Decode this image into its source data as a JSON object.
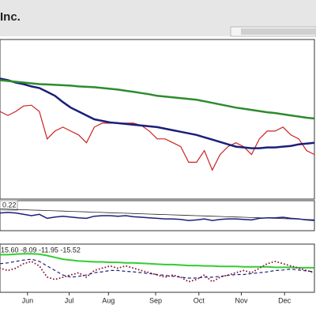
{
  "chart_data": [
    {
      "type": "line",
      "title": "Inc.",
      "xlim": [
        0,
        40
      ],
      "ylim": [
        0,
        100
      ],
      "x": [
        0,
        1,
        2,
        3,
        4,
        5,
        6,
        7,
        8,
        9,
        10,
        11,
        12,
        13,
        14,
        15,
        16,
        17,
        18,
        19,
        20,
        21,
        22,
        23,
        24,
        25,
        26,
        27,
        28,
        29,
        30,
        31,
        32,
        33,
        34,
        35,
        36,
        37,
        38,
        39,
        40
      ],
      "series": [
        {
          "color": "#cc2222",
          "width": 1.2,
          "values": [
            55,
            52.5,
            55,
            58.5,
            59,
            55,
            37.5,
            42.5,
            45,
            42.5,
            40,
            35,
            45,
            47.5,
            47.5,
            47.5,
            47.5,
            47.5,
            46,
            42.5,
            37.5,
            37.5,
            35,
            32.5,
            22.5,
            22.5,
            30,
            17.5,
            27.5,
            32.5,
            35,
            32.5,
            27.5,
            37.5,
            42.5,
            42.5,
            45,
            40,
            37.5,
            30,
            27.5
          ]
        },
        {
          "color": "#1a1f7a",
          "width": 2.5,
          "values": [
            76,
            75,
            73.5,
            72.5,
            71,
            70,
            67.5,
            65,
            61,
            57.5,
            55,
            52.5,
            50,
            49,
            48,
            47.5,
            47,
            46.5,
            46,
            45.5,
            45,
            44,
            43,
            42,
            41,
            40,
            38.5,
            37,
            35.5,
            34,
            32.5,
            32,
            31.5,
            31.5,
            32,
            32,
            32.5,
            33,
            34,
            34.5,
            35
          ]
        },
        {
          "color": "#2e8b2e",
          "width": 2.5,
          "values": [
            75,
            74.5,
            74,
            73.5,
            73,
            72.5,
            72.25,
            72,
            71.75,
            71.5,
            71,
            70.75,
            70.5,
            70,
            69.5,
            69,
            68.25,
            67.5,
            66.75,
            66,
            65,
            64.5,
            64,
            63.5,
            63,
            62.5,
            61.5,
            60.5,
            59.5,
            58.5,
            57.5,
            56.75,
            56,
            55.25,
            54.5,
            54,
            53.25,
            52.5,
            51.75,
            51,
            50.5
          ]
        }
      ]
    },
    {
      "type": "line",
      "label": "0.22",
      "xlim": [
        0,
        40
      ],
      "ylim": [
        0,
        10
      ],
      "x": [
        0,
        1,
        2,
        3,
        4,
        5,
        6,
        7,
        8,
        9,
        10,
        11,
        12,
        13,
        14,
        15,
        16,
        17,
        18,
        19,
        20,
        21,
        22,
        23,
        24,
        25,
        26,
        27,
        28,
        29,
        30,
        31,
        32,
        33,
        34,
        35,
        36,
        37,
        38,
        39,
        40
      ],
      "series": [
        {
          "color": "#222222",
          "width": 0.8,
          "values": [
            7.5,
            7.4,
            7.3,
            7.2,
            7.1,
            7,
            6.9,
            6.8,
            6.7,
            6.6,
            6.5,
            6.4,
            6.3,
            6.2,
            6.1,
            6,
            5.9,
            5.8,
            5.7,
            5.6,
            5.5,
            5.4,
            5.3,
            5.2,
            5.1,
            5,
            4.9,
            4.8,
            4.7,
            4.6,
            4.5,
            4.4,
            4.3,
            4.2,
            4.1,
            4,
            3.9,
            3.8,
            3.7,
            3.6,
            3.5
          ]
        },
        {
          "color": "#1a1f7a",
          "width": 1.5,
          "values": [
            6,
            6.2,
            6,
            5.5,
            5,
            5.5,
            4,
            4.5,
            4.8,
            4.5,
            4.2,
            4,
            4.8,
            5,
            5,
            4.8,
            5,
            4.6,
            4.4,
            4.2,
            4,
            3.8,
            3.8,
            3.6,
            3.2,
            3.4,
            3.8,
            3.2,
            3.6,
            3.8,
            3.8,
            3.6,
            3.4,
            4,
            4.2,
            4.2,
            4.4,
            4,
            3.8,
            3.4,
            3.2
          ]
        }
      ]
    },
    {
      "type": "line",
      "label": "15.60 -8.09 -11.95 -15.52",
      "xlim": [
        0,
        40
      ],
      "ylim": [
        0,
        10
      ],
      "x": [
        0,
        1,
        2,
        3,
        4,
        5,
        6,
        7,
        8,
        9,
        10,
        11,
        12,
        13,
        14,
        15,
        16,
        17,
        18,
        19,
        20,
        21,
        22,
        23,
        24,
        25,
        26,
        27,
        28,
        29,
        30,
        31,
        32,
        33,
        34,
        35,
        36,
        37,
        38,
        39,
        40
      ],
      "series": [
        {
          "color": "#33cc33",
          "width": 2,
          "values": [
            8,
            8,
            8.1,
            8.2,
            8.2,
            8.1,
            7.8,
            7.4,
            7,
            6.8,
            6.6,
            6.5,
            6.4,
            6.4,
            6.3,
            6.3,
            6.2,
            6.2,
            6.1,
            6,
            5.9,
            5.8,
            5.8,
            5.7,
            5.6,
            5.6,
            5.5,
            5.5,
            5.4,
            5.4,
            5.4,
            5.3,
            5.3,
            5.3,
            5.3,
            5.2,
            5.2,
            5.2,
            5.1,
            5.1,
            5.1
          ]
        },
        {
          "color": "#1a1f7a",
          "width": 1.2,
          "dash": true,
          "values": [
            6,
            6.2,
            6.5,
            6.8,
            7,
            6.5,
            5.5,
            4.5,
            3.5,
            3,
            3.2,
            3.5,
            4,
            4.2,
            4.5,
            4.5,
            4.3,
            4.2,
            4,
            3.8,
            3.6,
            3.4,
            3.2,
            3,
            2.8,
            2.8,
            3,
            3,
            3.2,
            3.4,
            3.6,
            3.6,
            3.8,
            4,
            4.2,
            4.5,
            4.6,
            4.8,
            4.6,
            4.4,
            4.2
          ]
        },
        {
          "color": "#8b1a3a",
          "width": 2,
          "dotted": true,
          "values": [
            5,
            4.5,
            5,
            6,
            6.5,
            5.5,
            3,
            2.5,
            3,
            3.5,
            4,
            3,
            4.5,
            5,
            5.5,
            5,
            5.5,
            5,
            4.5,
            4,
            3.5,
            3,
            3.5,
            3,
            2,
            2.5,
            3.5,
            2,
            3,
            3.5,
            4,
            4.5,
            4,
            5,
            6,
            6.5,
            6,
            5.5,
            5,
            4.5,
            4
          ]
        }
      ],
      "xticks": [
        {
          "value": 3.5,
          "label": "Jun"
        },
        {
          "value": 8.8,
          "label": "Jul"
        },
        {
          "value": 13.8,
          "label": "Aug"
        },
        {
          "value": 19.8,
          "label": "Sep"
        },
        {
          "value": 25.3,
          "label": "Oct"
        },
        {
          "value": 30.7,
          "label": "Nov"
        },
        {
          "value": 36.2,
          "label": "Dec"
        }
      ]
    }
  ]
}
